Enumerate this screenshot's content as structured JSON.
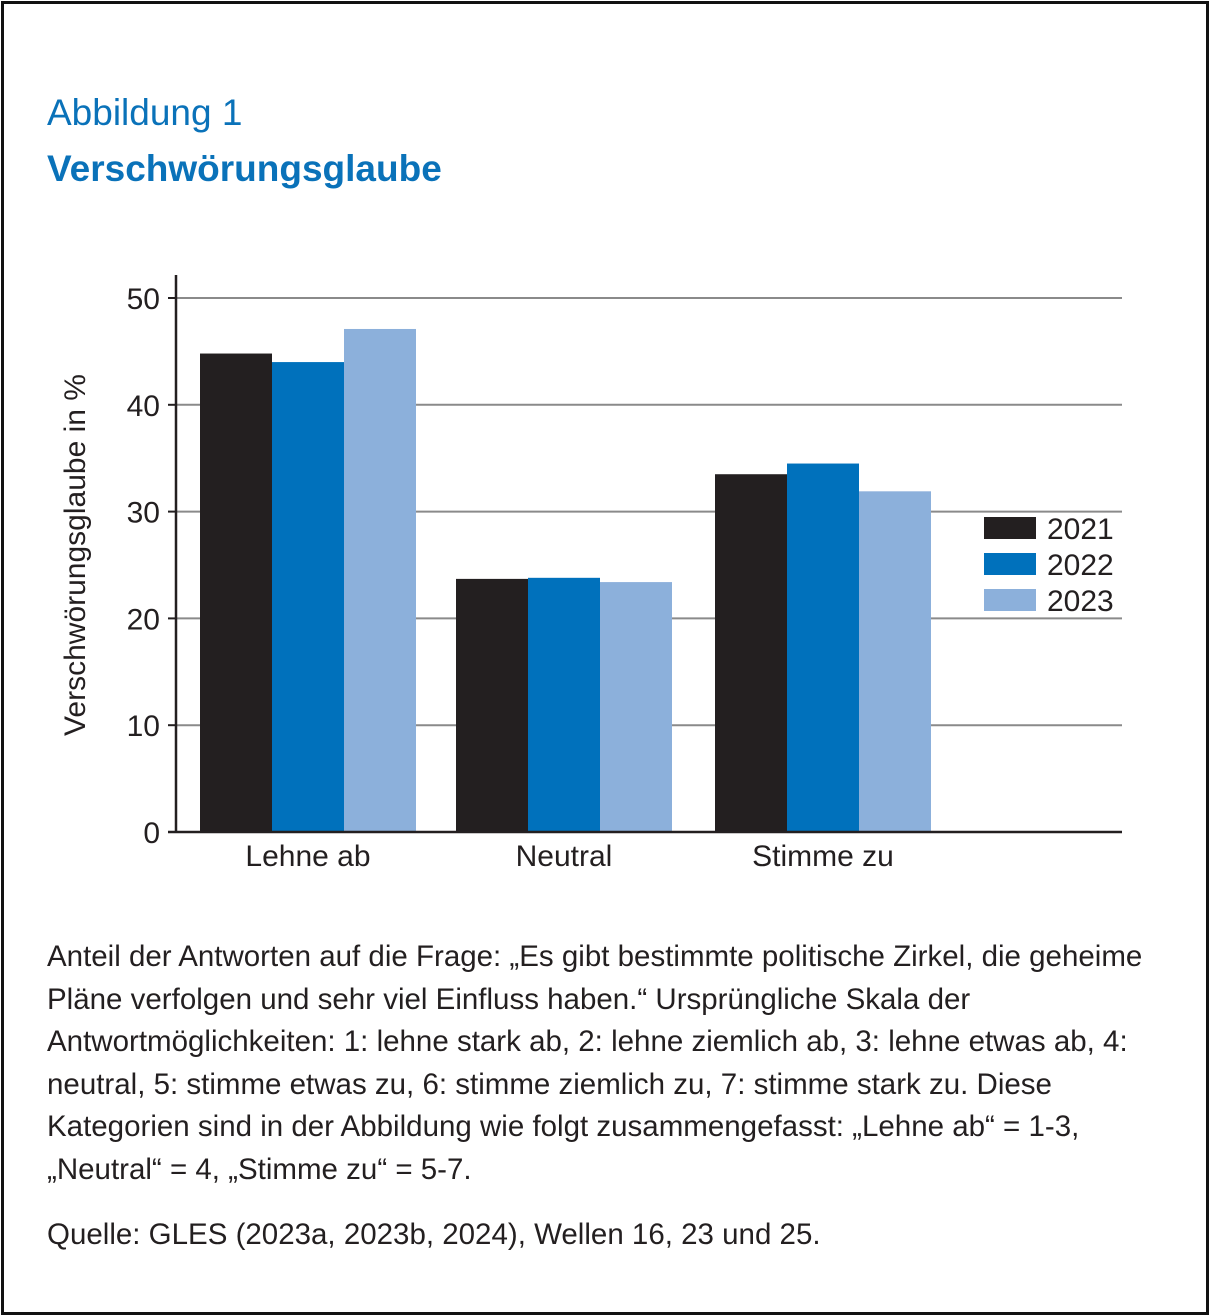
{
  "figure_label": "Abbildung 1",
  "title": "Verschwörungsglaube",
  "note": "Anteil der Antworten auf die Frage: „Es gibt bestimmte politische Zirkel, die geheime Pläne verfolgen und sehr viel Einfluss haben.“ Ursprüngliche Skala der Antwortmöglichkeiten: 1: lehne stark ab, 2: lehne ziemlich ab, 3: lehne etwas ab, 4: neutral, 5: stimme etwas zu, 6: stimme ziemlich zu, 7: stimme stark zu. Diese Kategorien sind in der Abbildung wie folgt zusammengefasst: „Lehne ab“ = 1-3, „Neutral“ = 4, „Stimme zu“ = 5-7.",
  "source": "Quelle: GLES (2023a, 2023b, 2024), Wellen 16, 23 und 25.",
  "chart_data": {
    "type": "bar",
    "title": "",
    "xlabel": "",
    "ylabel": "Verschwörungsglaube in %",
    "ylim": [
      0,
      50
    ],
    "yticks": [
      0,
      10,
      20,
      30,
      40,
      50
    ],
    "grid": true,
    "legend_position": "right",
    "categories": [
      "Lehne ab",
      "Neutral",
      "Stimme zu"
    ],
    "series": [
      {
        "name": "2021",
        "color": "#231f20",
        "values": [
          44.8,
          23.7,
          33.5
        ]
      },
      {
        "name": "2022",
        "color": "#0071bc",
        "values": [
          44.0,
          23.8,
          34.5
        ]
      },
      {
        "name": "2023",
        "color": "#8cb0db",
        "values": [
          47.1,
          23.4,
          31.9
        ]
      }
    ]
  }
}
